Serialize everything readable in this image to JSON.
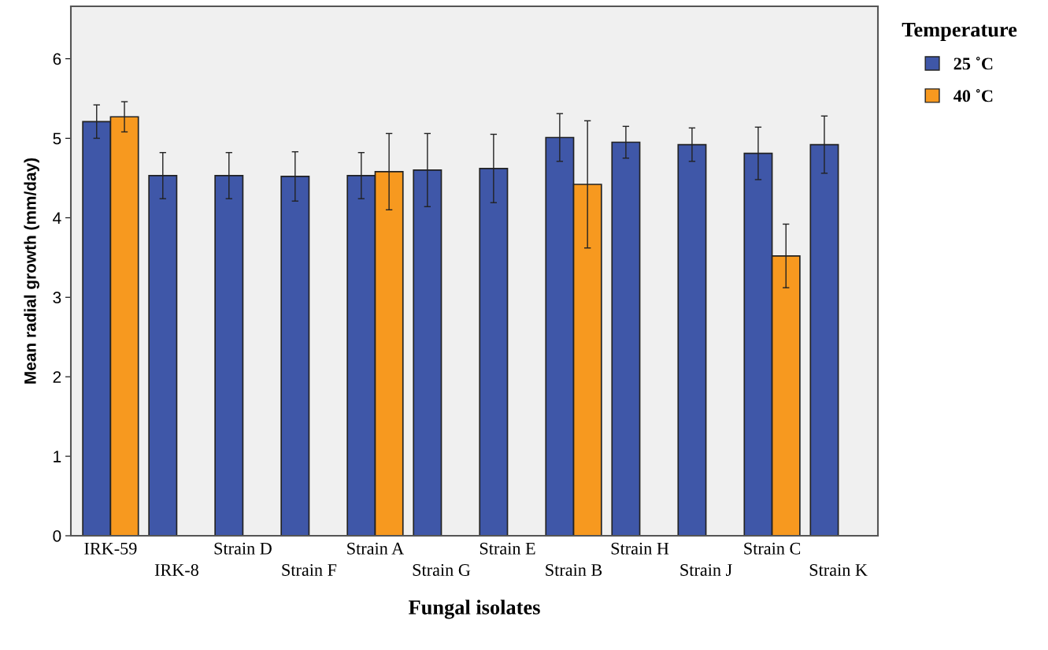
{
  "chart_data": {
    "type": "bar",
    "xlabel": "Fungal isolates",
    "ylabel": "Mean radial growth (mm/day)",
    "legend_title": "Temperature",
    "categories": [
      "IRK-59",
      "IRK-8",
      "Strain D",
      "Strain F",
      "Strain A",
      "Strain G",
      "Strain E",
      "Strain B",
      "Strain H",
      "Strain J",
      "Strain C",
      "Strain K"
    ],
    "series": [
      {
        "name": "25 ˚C",
        "color": "#3f57a8",
        "values": [
          5.21,
          4.53,
          4.53,
          4.52,
          4.53,
          4.6,
          4.62,
          5.01,
          4.95,
          4.92,
          4.81,
          4.92
        ],
        "errors": [
          0.21,
          0.29,
          0.29,
          0.31,
          0.29,
          0.46,
          0.43,
          0.3,
          0.2,
          0.21,
          0.33,
          0.36
        ]
      },
      {
        "name": "40 ˚C",
        "color": "#f7991f",
        "values": [
          5.27,
          0,
          0,
          0,
          4.58,
          0,
          0,
          4.42,
          0,
          0,
          3.52,
          0
        ],
        "errors": [
          0.19,
          null,
          null,
          null,
          0.48,
          null,
          null,
          0.8,
          null,
          null,
          0.4,
          null
        ]
      }
    ],
    "ylim": [
      0,
      6.66
    ],
    "yticks": [
      0,
      1,
      2,
      3,
      4,
      5,
      6
    ],
    "grid": false,
    "legend": "right"
  }
}
